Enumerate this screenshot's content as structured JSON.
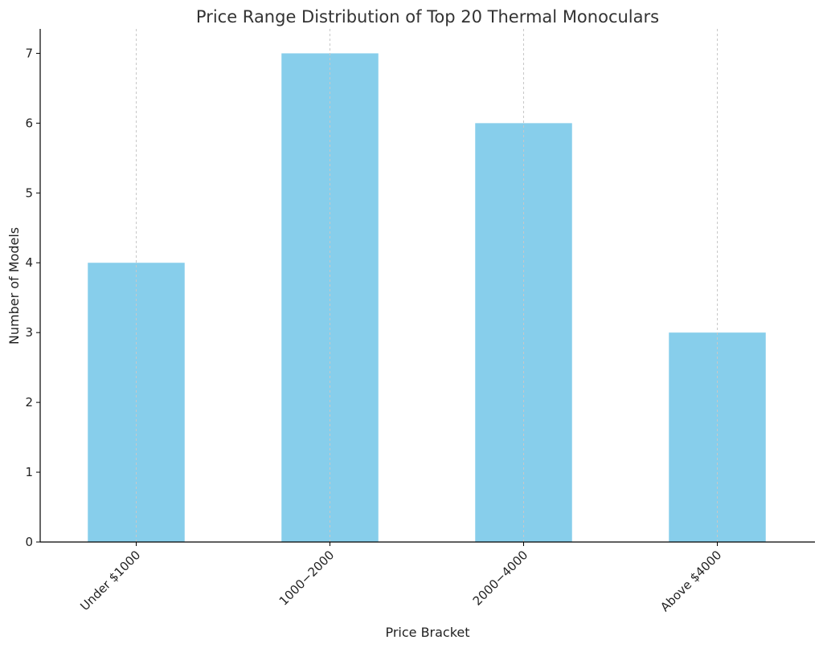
{
  "chart_data": {
    "type": "bar",
    "title": "Price Range Distribution of Top 20 Thermal Monoculars",
    "xlabel": "Price Bracket",
    "ylabel": "Number of Models",
    "categories": [
      "Under $1000",
      "1000−2000",
      "2000−4000",
      "Above $4000"
    ],
    "values": [
      4,
      7,
      6,
      3
    ],
    "ylim": [
      0,
      7.35
    ],
    "yticks": [
      0,
      1,
      2,
      3,
      4,
      5,
      6,
      7
    ],
    "grid": "x-axis only, dashed",
    "legend": "none",
    "bar_color": "#87CEEB"
  }
}
